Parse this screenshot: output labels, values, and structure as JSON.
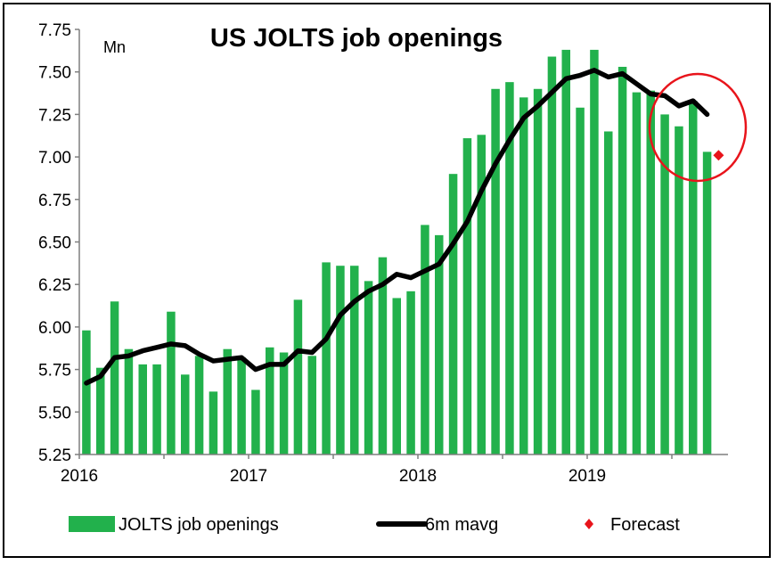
{
  "chart_data": {
    "type": "bar",
    "title": "US JOLTS job openings",
    "unit_label": "Mn",
    "ylim": [
      5.25,
      7.75
    ],
    "y_ticks": [
      "7.75",
      "7.50",
      "7.25",
      "7.00",
      "6.75",
      "6.50",
      "6.25",
      "6.00",
      "5.75",
      "5.50",
      "5.25"
    ],
    "x_ticks": [
      "2016",
      "2017",
      "2018",
      "2019"
    ],
    "x_tick_months": [
      0,
      12,
      24,
      36
    ],
    "series": [
      {
        "name": "JOLTS job openings",
        "type": "bar",
        "color": "#22b14c",
        "values": [
          5.98,
          5.76,
          6.15,
          5.87,
          5.78,
          5.78,
          6.09,
          5.72,
          5.83,
          5.62,
          5.87,
          5.82,
          5.63,
          5.88,
          5.85,
          6.16,
          5.83,
          6.38,
          6.36,
          6.36,
          6.27,
          6.41,
          6.17,
          6.21,
          6.6,
          6.54,
          6.9,
          7.11,
          7.13,
          7.4,
          7.44,
          7.35,
          7.4,
          7.59,
          7.63,
          7.29,
          7.63,
          7.15,
          7.53,
          7.38,
          7.39,
          7.25,
          7.18,
          7.33,
          7.03
        ]
      },
      {
        "name": "6m mavg",
        "type": "line",
        "color": "#000000",
        "values": [
          5.67,
          5.71,
          5.82,
          5.83,
          5.86,
          5.88,
          5.9,
          5.89,
          5.84,
          5.8,
          5.81,
          5.82,
          5.75,
          5.78,
          5.78,
          5.86,
          5.85,
          5.93,
          6.07,
          6.15,
          6.21,
          6.25,
          6.31,
          6.29,
          6.33,
          6.37,
          6.49,
          6.62,
          6.8,
          6.96,
          7.1,
          7.23,
          7.3,
          7.38,
          7.46,
          7.48,
          7.51,
          7.47,
          7.49,
          7.43,
          7.37,
          7.36,
          7.3,
          7.33,
          7.25
        ]
      },
      {
        "name": "Forecast",
        "type": "scatter",
        "color": "#e8141b",
        "x_month": 45,
        "value": 7.01
      }
    ],
    "legend": [
      "JOLTS job openings",
      "6m mavg",
      "Forecast"
    ],
    "legend_position": "bottom",
    "annotation": "red-circle-highlight-recent-values",
    "grid": false
  }
}
